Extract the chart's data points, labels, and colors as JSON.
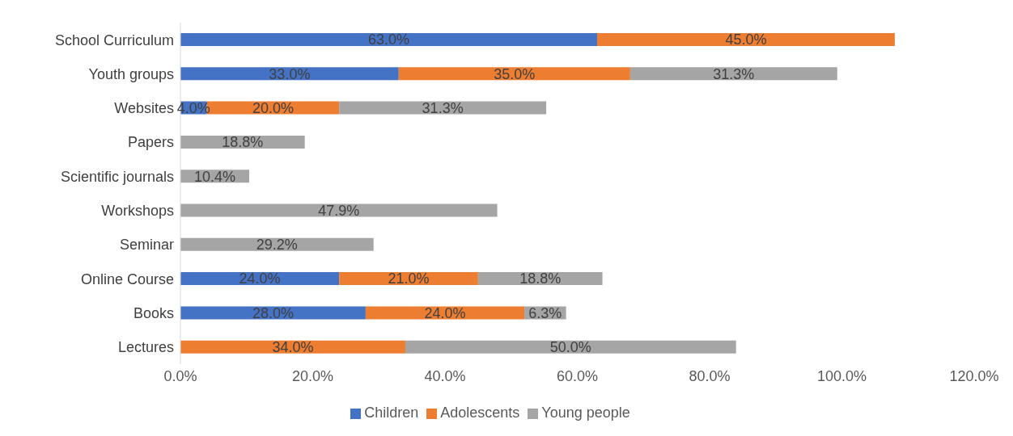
{
  "chart_data": {
    "type": "bar",
    "orientation": "horizontal",
    "stacked": true,
    "categories": [
      "School Curriculum",
      "Youth groups",
      "Websites",
      "Papers",
      "Scientific journals",
      "Workshops",
      "Seminar",
      "Online Course",
      "Books",
      "Lectures"
    ],
    "series": [
      {
        "name": "Children",
        "color": "#4472c4",
        "values": [
          63,
          33,
          4,
          null,
          null,
          null,
          null,
          24,
          28,
          null
        ],
        "value_labels": [
          "63.0%",
          "33.0%",
          "4.0%",
          null,
          null,
          null,
          null,
          "24.0%",
          "28.0%",
          null
        ]
      },
      {
        "name": "Adolescents",
        "color": "#ed7d31",
        "values": [
          45,
          35,
          20,
          null,
          null,
          null,
          null,
          21,
          24,
          34
        ],
        "value_labels": [
          "45.0%",
          "35.0%",
          "20.0%",
          null,
          null,
          null,
          null,
          "21.0%",
          "24.0%",
          "34.0%"
        ]
      },
      {
        "name": "Young people",
        "color": "#a5a5a5",
        "values": [
          null,
          31.3,
          31.3,
          18.8,
          10.4,
          47.9,
          29.2,
          18.8,
          6.3,
          50
        ],
        "value_labels": [
          null,
          "31.3%",
          "31.3%",
          "18.8%",
          "10.4%",
          "47.9%",
          "29.2%",
          "18.8%",
          "6.3%",
          "50.0%"
        ]
      }
    ],
    "xlim": [
      0,
      120
    ],
    "xticks": [
      {
        "value": 0,
        "label": "0.0%"
      },
      {
        "value": 20,
        "label": "20.0%"
      },
      {
        "value": 40,
        "label": "40.0%"
      },
      {
        "value": 60,
        "label": "60.0%"
      },
      {
        "value": 80,
        "label": "80.0%"
      },
      {
        "value": 100,
        "label": "100.0%"
      },
      {
        "value": 120,
        "label": "120.0%"
      }
    ],
    "grid": false,
    "legend": "bottom"
  }
}
